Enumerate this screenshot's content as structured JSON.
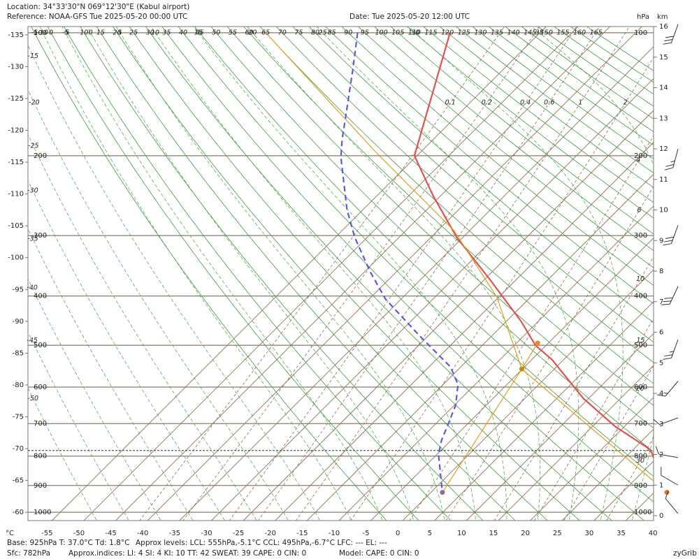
{
  "chart_data": {
    "type": "skewt",
    "header": {
      "location": "Location:  34°33'30\"N  069°12'30\"E (Kabul airport)",
      "reference": "Reference: NOAA-GFS Tue 2025-05-20 00:00 UTC",
      "date": "Date: Tue 2025-05-20 12:00 UTC"
    },
    "units": {
      "temperature": "°C",
      "pressure": "hPa",
      "height": "km"
    },
    "footer": {
      "base": "Base: 925hPa  T: 37.0°C  Td: 1.8°C",
      "levels": "Approx levels:  LCL: 555hPa,-5.1°C   CCL: 495hPa,-6.7°C   LFC: ---   EL: ---",
      "surface": "Sfc: 782hPa",
      "indices": "Approx.indices:  LI: 4   SI: 4   KI: 10   TT: 42   SWEAT: 39    CAPE: 0  CIN: 0",
      "model": "Model: CAPE: 0 CIN: 0",
      "credit": "zyGrib"
    },
    "xlim": [
      -58,
      40.1
    ],
    "xticks": [
      -55,
      -50,
      -45,
      -40,
      -35,
      -30,
      -25,
      -20,
      -15,
      -10,
      -5,
      0,
      5,
      10,
      15,
      20,
      25,
      30,
      35,
      40
    ],
    "zlim": [
      -0.16,
      16
    ],
    "zticks": [
      0,
      1,
      2,
      3,
      4,
      5,
      6,
      7,
      8,
      9,
      10,
      11,
      12,
      13,
      14,
      15,
      16
    ],
    "pticks": [
      100,
      200,
      300,
      400,
      500,
      600,
      700,
      800,
      900,
      1000
    ],
    "left_ylim": [
      -58.7,
      -136.3
    ],
    "left_ticks": [
      -135,
      -130,
      -125,
      -120,
      -115,
      -110,
      -105,
      -100,
      -95,
      -90,
      -85,
      -80,
      -75,
      -70,
      -65,
      -60
    ],
    "surface_pressure": 782,
    "dry_adiabats": {
      "color": "#3f9a3f",
      "values": [
        -5,
        0,
        5,
        10,
        15,
        20,
        25,
        30,
        35,
        40,
        45,
        50,
        55,
        60,
        65,
        70,
        75,
        80,
        85,
        90,
        95,
        100,
        105,
        110,
        115,
        120,
        125,
        130,
        135,
        140,
        145,
        150,
        155,
        160,
        165
      ]
    },
    "moist_adiabats": {
      "color": "#5aaa5a",
      "values": [
        -50,
        -45,
        -40,
        -35,
        -30,
        -25,
        -20,
        -15,
        -10,
        -5,
        0,
        5,
        10,
        15,
        20,
        25,
        30,
        35
      ]
    },
    "mixing_ratio": {
      "color": "#8a6e58",
      "values": [
        0.1,
        0.2,
        0.4,
        0.6,
        1,
        2,
        4,
        6,
        10,
        15,
        20,
        30
      ]
    },
    "series": [
      {
        "color": "#e05252",
        "dash": false,
        "pressure": [
          100,
          200,
          246,
          303,
          370,
          449,
          500,
          533,
          630,
          708,
          772,
          789,
          925
        ],
        "values": [
          -69.1,
          -55.4,
          -46.2,
          -35.9,
          -24.2,
          -12.7,
          -6.7,
          -1.8,
          9.2,
          18.5,
          26.8,
          28.4,
          37
        ]
      },
      {
        "color": "#5a5adc",
        "dash": true,
        "pressure": [
          100,
          124.6,
          184,
          201.5,
          264,
          303,
          358,
          406,
          479,
          550,
          593,
          648,
          708,
          750,
          794,
          925
        ],
        "values": [
          -83.6,
          -78.5,
          -69.2,
          -66.7,
          -57.5,
          -51.9,
          -44,
          -37.4,
          -26.4,
          -16.6,
          -12.7,
          -9.8,
          -7.8,
          -6.5,
          -4.8,
          1.8
        ]
      },
      {
        "color": "#d8a020",
        "dash": false,
        "pressure": [
          925,
          555,
          402,
          293,
          198,
          100
        ],
        "values": [
          37,
          -5.1,
          -20.3,
          -37.4,
          -61.5,
          -98
        ]
      },
      {
        "color": "#d8a020",
        "dash": false,
        "pressure": [
          925,
          555
        ],
        "values": [
          1.8,
          -5.1
        ]
      },
      {
        "color": "#d8a020",
        "dash": false,
        "pressure": [
          555,
          495
        ],
        "values": [
          -5.1,
          -6.7
        ]
      }
    ],
    "points": {
      "pressure": [
        925,
        925,
        555,
        495
      ],
      "values": [
        37,
        1.8,
        -5.1,
        -6.7
      ],
      "colors": [
        "#e87020",
        "#8a6a9a",
        "#c08a10",
        "#e88a20"
      ]
    },
    "winds": {
      "z": [
        16.07,
        12.0,
        9.5,
        7.5,
        5.76,
        4.4,
        3.2,
        1.9,
        1.0,
        0.07
      ],
      "direction": [
        200,
        195,
        200,
        205,
        200,
        220,
        250,
        280,
        300,
        320
      ],
      "speed": [
        30,
        25,
        30,
        30,
        25,
        15,
        10,
        10,
        10,
        10
      ]
    }
  }
}
